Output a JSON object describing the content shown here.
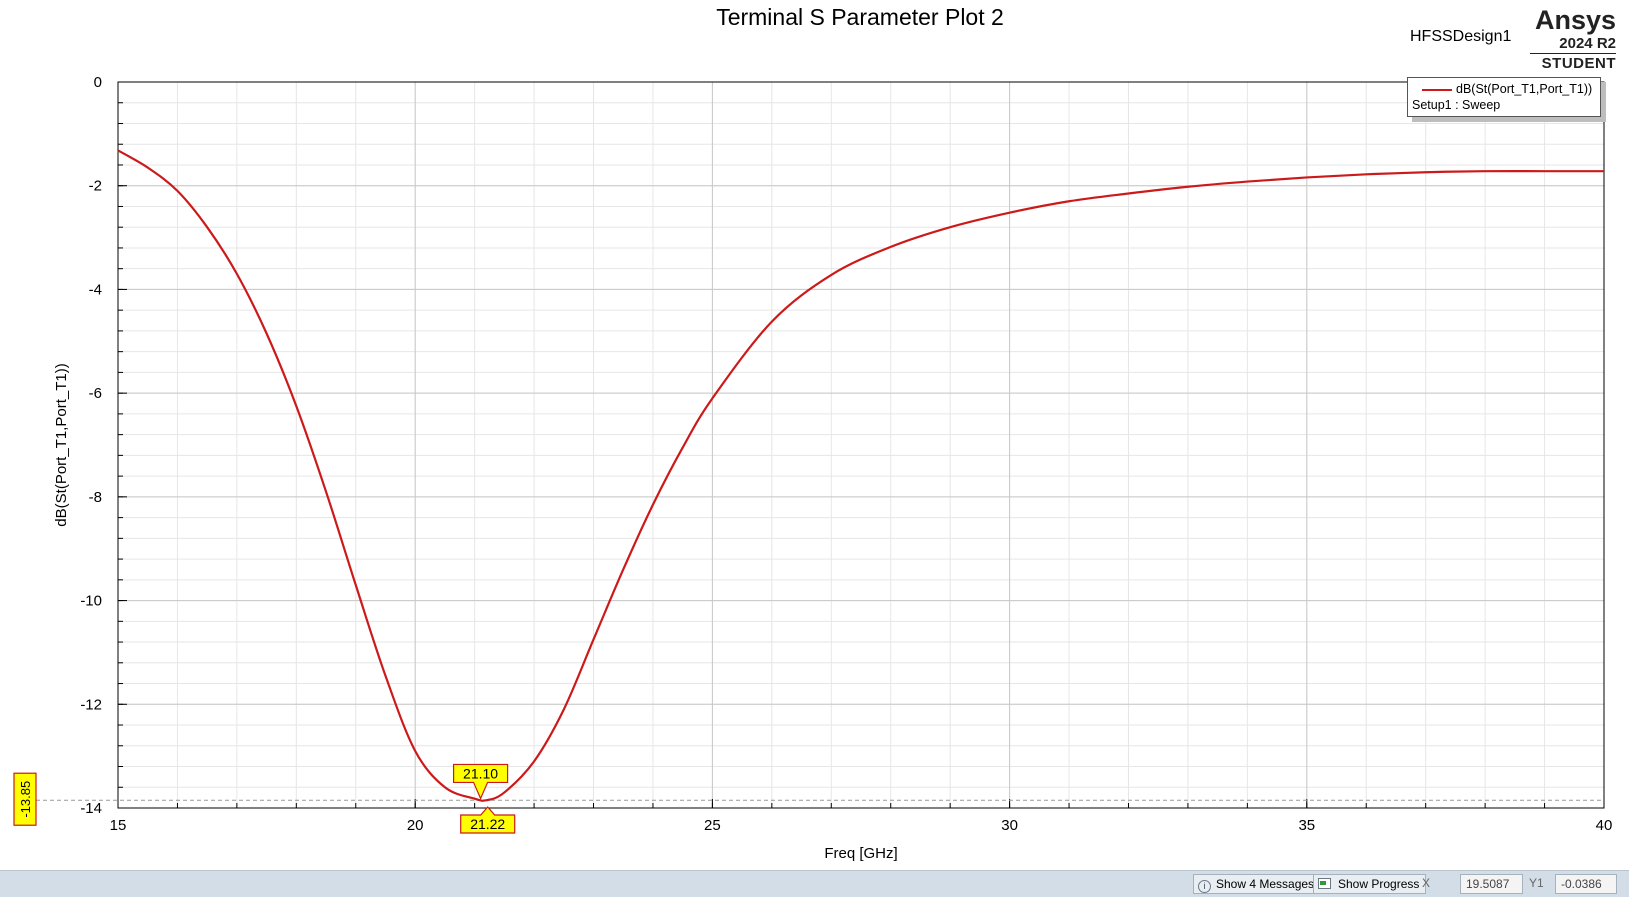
{
  "header": {
    "design_name": "HFSSDesign1",
    "brand": {
      "name": "Ansys",
      "version": "2024 R2",
      "edition": "STUDENT"
    }
  },
  "legend": {
    "series_label": "dB(St(Port_T1,Port_T1))",
    "setup_label": "Setup1 : Sweep"
  },
  "markers": {
    "x_markers": [
      "21.10",
      "21.22"
    ],
    "y_marker": "-13.85"
  },
  "status_bar": {
    "messages_button": "Show 4 Messages",
    "progress_button": "Show Progress",
    "x_label": "X",
    "x_value": "19.5087",
    "y_label": "Y1",
    "y_value": "-0.0386"
  },
  "colors": {
    "trace": "#cc1a1a",
    "marker_fill": "#ffff00",
    "marker_border": "#cc1a1a"
  },
  "chart_data": {
    "type": "line",
    "title": "Terminal S Parameter Plot 2",
    "xlabel": "Freq [GHz]",
    "ylabel": "dB(St(Port_T1,Port_T1))",
    "xlim": [
      15,
      40
    ],
    "ylim": [
      -14,
      0
    ],
    "xticks": [
      15,
      20,
      25,
      30,
      35,
      40
    ],
    "yticks": [
      0,
      -2,
      -4,
      -6,
      -8,
      -10,
      -12,
      -14
    ],
    "grid": true,
    "legend_position": "top-right",
    "series": [
      {
        "name": "dB(St(Port_T1,Port_T1))",
        "x": [
          15,
          15.5,
          16,
          16.5,
          17,
          17.5,
          18,
          18.5,
          19,
          19.5,
          20,
          20.5,
          21,
          21.2,
          21.5,
          22,
          22.5,
          23,
          23.5,
          24,
          24.5,
          25,
          26,
          27,
          28,
          29,
          30,
          31,
          32,
          33,
          34,
          35,
          36,
          37,
          38,
          39,
          40
        ],
        "values": [
          -1.32,
          -1.65,
          -2.1,
          -2.8,
          -3.7,
          -4.85,
          -6.25,
          -7.9,
          -9.7,
          -11.45,
          -12.9,
          -13.6,
          -13.82,
          -13.85,
          -13.7,
          -13.1,
          -12.1,
          -10.75,
          -9.4,
          -8.15,
          -7.05,
          -6.1,
          -4.62,
          -3.72,
          -3.18,
          -2.8,
          -2.52,
          -2.3,
          -2.15,
          -2.02,
          -1.92,
          -1.84,
          -1.78,
          -1.74,
          -1.72,
          -1.72,
          -1.72
        ]
      }
    ]
  }
}
